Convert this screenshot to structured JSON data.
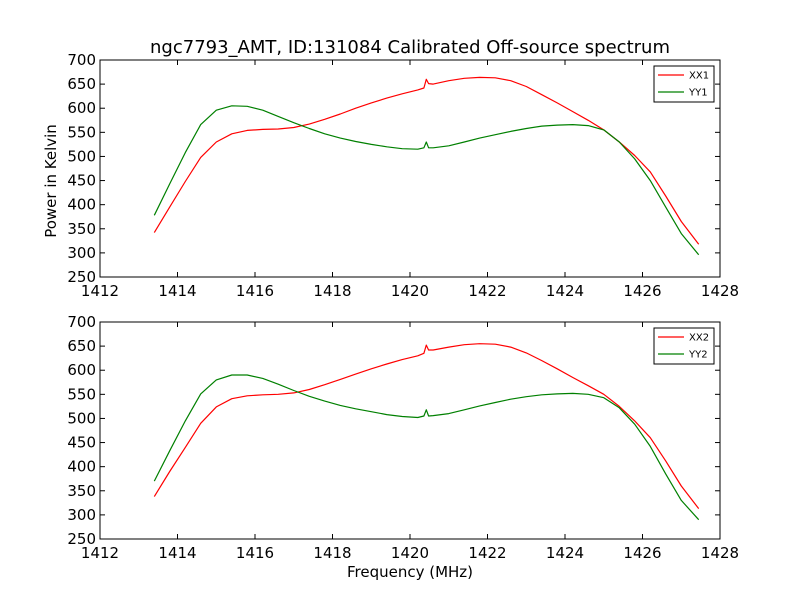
{
  "figure": {
    "title": "ngc7793_AMT, ID:131084 Calibrated Off-source spectrum",
    "xlabel": "Frequency (MHz)",
    "ylabel_top": "Power in Kelvin"
  },
  "chart_data": [
    {
      "type": "line",
      "title": "ngc7793_AMT, ID:131084 Calibrated Off-source spectrum",
      "xlabel": "",
      "ylabel": "Power in Kelvin",
      "xlim": [
        1412,
        1428
      ],
      "ylim": [
        250,
        700
      ],
      "xticks": [
        1412,
        1414,
        1416,
        1418,
        1420,
        1422,
        1424,
        1426,
        1428
      ],
      "yticks": [
        250,
        300,
        350,
        400,
        450,
        500,
        550,
        600,
        650,
        700
      ],
      "legend_position": "top-right",
      "grid": false,
      "series": [
        {
          "name": "XX1",
          "color": "#ff0000",
          "x": [
            1413.4,
            1413.8,
            1414.2,
            1414.6,
            1415.0,
            1415.4,
            1415.8,
            1416.2,
            1416.6,
            1417.0,
            1417.4,
            1417.8,
            1418.2,
            1418.6,
            1419.0,
            1419.4,
            1419.8,
            1420.2,
            1420.36,
            1420.42,
            1420.48,
            1420.6,
            1421.0,
            1421.4,
            1421.8,
            1422.2,
            1422.6,
            1423.0,
            1423.4,
            1423.8,
            1424.2,
            1424.6,
            1425.0,
            1425.4,
            1425.8,
            1426.2,
            1426.6,
            1427.0,
            1427.45
          ],
          "y": [
            342,
            395,
            448,
            498,
            530,
            547,
            554,
            556,
            557,
            560,
            567,
            577,
            588,
            600,
            611,
            621,
            630,
            638,
            642,
            660,
            651,
            650,
            657,
            662,
            664,
            663,
            657,
            645,
            628,
            611,
            593,
            575,
            555,
            530,
            502,
            468,
            418,
            365,
            318
          ]
        },
        {
          "name": "YY1",
          "color": "#008000",
          "x": [
            1413.4,
            1413.8,
            1414.2,
            1414.6,
            1415.0,
            1415.4,
            1415.8,
            1416.2,
            1416.6,
            1417.0,
            1417.4,
            1417.8,
            1418.2,
            1418.6,
            1419.0,
            1419.4,
            1419.8,
            1420.2,
            1420.36,
            1420.42,
            1420.48,
            1420.6,
            1421.0,
            1421.4,
            1421.8,
            1422.2,
            1422.6,
            1423.0,
            1423.4,
            1423.8,
            1424.2,
            1424.6,
            1425.0,
            1425.4,
            1425.8,
            1426.2,
            1426.6,
            1427.0,
            1427.45
          ],
          "y": [
            378,
            443,
            508,
            566,
            596,
            605,
            604,
            596,
            583,
            570,
            558,
            547,
            538,
            531,
            525,
            520,
            516,
            515,
            518,
            530,
            518,
            518,
            522,
            530,
            538,
            545,
            552,
            558,
            563,
            565,
            566,
            564,
            555,
            530,
            495,
            450,
            395,
            340,
            296
          ]
        }
      ]
    },
    {
      "type": "line",
      "title": "",
      "xlabel": "Frequency (MHz)",
      "ylabel": "",
      "xlim": [
        1412,
        1428
      ],
      "ylim": [
        250,
        700
      ],
      "xticks": [
        1412,
        1414,
        1416,
        1418,
        1420,
        1422,
        1424,
        1426,
        1428
      ],
      "yticks": [
        250,
        300,
        350,
        400,
        450,
        500,
        550,
        600,
        650,
        700
      ],
      "legend_position": "top-right",
      "grid": false,
      "series": [
        {
          "name": "XX2",
          "color": "#ff0000",
          "x": [
            1413.4,
            1413.8,
            1414.2,
            1414.6,
            1415.0,
            1415.4,
            1415.8,
            1416.2,
            1416.6,
            1417.0,
            1417.4,
            1417.8,
            1418.2,
            1418.6,
            1419.0,
            1419.4,
            1419.8,
            1420.2,
            1420.36,
            1420.42,
            1420.48,
            1420.6,
            1421.0,
            1421.4,
            1421.8,
            1422.2,
            1422.6,
            1423.0,
            1423.4,
            1423.8,
            1424.2,
            1424.6,
            1425.0,
            1425.4,
            1425.8,
            1426.2,
            1426.6,
            1427.0,
            1427.45
          ],
          "y": [
            338,
            390,
            440,
            490,
            524,
            541,
            547,
            549,
            550,
            553,
            560,
            570,
            581,
            592,
            603,
            613,
            622,
            630,
            635,
            652,
            642,
            642,
            648,
            653,
            655,
            654,
            648,
            636,
            620,
            603,
            585,
            568,
            550,
            525,
            495,
            460,
            412,
            360,
            313
          ]
        },
        {
          "name": "YY2",
          "color": "#008000",
          "x": [
            1413.4,
            1413.8,
            1414.2,
            1414.6,
            1415.0,
            1415.4,
            1415.8,
            1416.2,
            1416.6,
            1417.0,
            1417.4,
            1417.8,
            1418.2,
            1418.6,
            1419.0,
            1419.4,
            1419.8,
            1420.2,
            1420.36,
            1420.42,
            1420.48,
            1420.6,
            1421.0,
            1421.4,
            1421.8,
            1422.2,
            1422.6,
            1423.0,
            1423.4,
            1423.8,
            1424.2,
            1424.6,
            1425.0,
            1425.4,
            1425.8,
            1426.2,
            1426.6,
            1427.0,
            1427.45
          ],
          "y": [
            370,
            433,
            495,
            551,
            580,
            590,
            590,
            583,
            571,
            558,
            546,
            536,
            527,
            520,
            514,
            508,
            504,
            502,
            505,
            518,
            505,
            506,
            510,
            518,
            526,
            533,
            540,
            545,
            549,
            551,
            552,
            550,
            543,
            522,
            488,
            442,
            385,
            330,
            290
          ]
        }
      ]
    }
  ]
}
